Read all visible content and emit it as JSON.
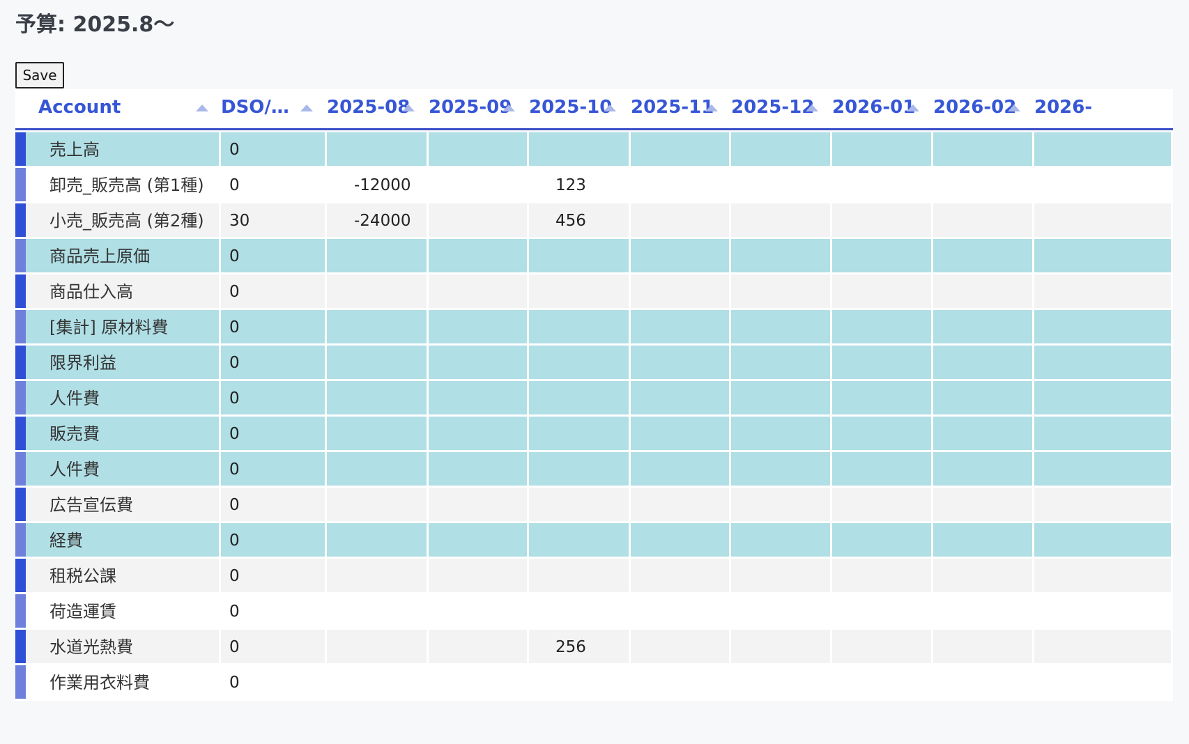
{
  "page_title": "予算: 2025.8〜",
  "toolbar": {
    "save_label": "Save"
  },
  "table": {
    "headers": {
      "account": "Account",
      "dso": "DSO/D…",
      "months": [
        "2025-08",
        "2025-09",
        "2025-10",
        "2025-11",
        "2025-12",
        "2026-01",
        "2026-02",
        "2026-"
      ]
    },
    "rows": [
      {
        "account": "売上高",
        "dso": "0",
        "values": [
          "",
          "",
          "",
          "",
          "",
          "",
          "",
          ""
        ]
      },
      {
        "account": "卸売_販売高 (第1種)",
        "dso": "0",
        "values": [
          "-12000",
          "",
          "123",
          "",
          "",
          "",
          "",
          ""
        ]
      },
      {
        "account": "小売_販売高 (第2種)",
        "dso": "30",
        "values": [
          "-24000",
          "",
          "456",
          "",
          "",
          "",
          "",
          ""
        ]
      },
      {
        "account": "商品売上原価",
        "dso": "0",
        "values": [
          "",
          "",
          "",
          "",
          "",
          "",
          "",
          ""
        ]
      },
      {
        "account": "商品仕入高",
        "dso": "0",
        "values": [
          "",
          "",
          "",
          "",
          "",
          "",
          "",
          ""
        ]
      },
      {
        "account": "[集計] 原材料費",
        "dso": "0",
        "values": [
          "",
          "",
          "",
          "",
          "",
          "",
          "",
          ""
        ]
      },
      {
        "account": "限界利益",
        "dso": "0",
        "values": [
          "",
          "",
          "",
          "",
          "",
          "",
          "",
          ""
        ]
      },
      {
        "account": "人件費",
        "dso": "0",
        "values": [
          "",
          "",
          "",
          "",
          "",
          "",
          "",
          ""
        ]
      },
      {
        "account": "販売費",
        "dso": "0",
        "values": [
          "",
          "",
          "",
          "",
          "",
          "",
          "",
          ""
        ]
      },
      {
        "account": "人件費",
        "dso": "0",
        "values": [
          "",
          "",
          "",
          "",
          "",
          "",
          "",
          ""
        ]
      },
      {
        "account": "広告宣伝費",
        "dso": "0",
        "values": [
          "",
          "",
          "",
          "",
          "",
          "",
          "",
          ""
        ]
      },
      {
        "account": "経費",
        "dso": "0",
        "values": [
          "",
          "",
          "",
          "",
          "",
          "",
          "",
          ""
        ]
      },
      {
        "account": "租税公課",
        "dso": "0",
        "values": [
          "",
          "",
          "",
          "",
          "",
          "",
          "",
          ""
        ]
      },
      {
        "account": "荷造運賃",
        "dso": "0",
        "values": [
          "",
          "",
          "",
          "",
          "",
          "",
          "",
          ""
        ]
      },
      {
        "account": "水道光熱費",
        "dso": "0",
        "values": [
          "",
          "",
          "256",
          "",
          "",
          "",
          "",
          ""
        ]
      },
      {
        "account": "作業用衣料費",
        "dso": "0",
        "values": [
          "",
          "",
          "",
          "",
          "",
          "",
          "",
          ""
        ]
      }
    ]
  },
  "colors": {
    "accent": "#3656d6",
    "summary_row": "#b0dfe5",
    "row_marker_dark": "#2f4fd6",
    "row_marker_light": "#6f80dc"
  }
}
